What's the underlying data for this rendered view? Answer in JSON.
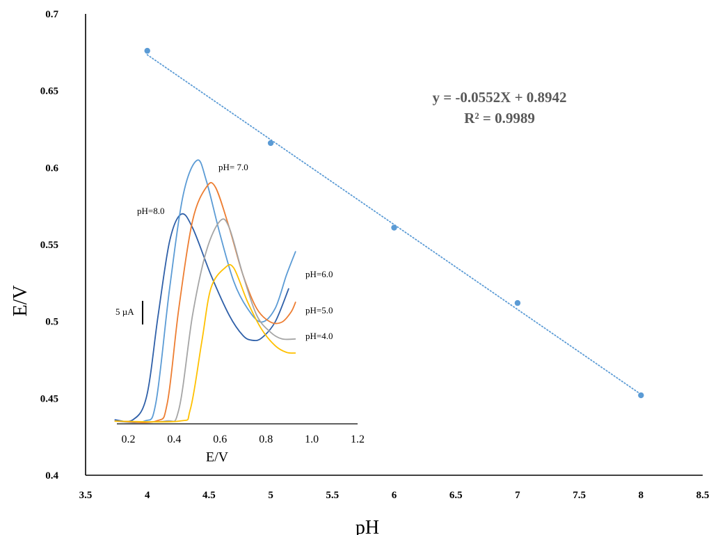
{
  "chart_data": [
    {
      "type": "scatter",
      "xlabel": "pH",
      "ylabel": "E/V",
      "xlim": [
        3.5,
        8.5
      ],
      "ylim": [
        0.4,
        0.7
      ],
      "xticks": [
        "3.5",
        "4",
        "4.5",
        "5",
        "5.5",
        "6",
        "6.5",
        "7",
        "7.5",
        "8",
        "8.5"
      ],
      "yticks": [
        "0.4",
        "0.45",
        "0.5",
        "0.55",
        "0.6",
        "0.65",
        "0.7"
      ],
      "points": [
        {
          "x": 4.0,
          "y": 0.676
        },
        {
          "x": 5.0,
          "y": 0.616
        },
        {
          "x": 6.0,
          "y": 0.561
        },
        {
          "x": 7.0,
          "y": 0.512
        },
        {
          "x": 8.0,
          "y": 0.452
        }
      ],
      "trendline": {
        "slope": -0.0552,
        "intercept": 0.8942,
        "x_range": [
          4.0,
          8.0
        ],
        "style": "dotted"
      },
      "equation_text": "y = -0.0552X + 0.8942",
      "r2_text": "R² = 0.9989",
      "point_color": "#5b9bd5",
      "grid": false
    },
    {
      "type": "line",
      "xlabel": "E/V",
      "xlim": [
        0.15,
        1.2
      ],
      "xticks": [
        "0.2",
        "0.4",
        "0.6",
        "0.8",
        "1.0",
        "1.2"
      ],
      "scale_bar_label": "5 µA",
      "series": [
        {
          "name": "pH=8.0",
          "color": "#2e5fa8",
          "points": [
            [
              0.14,
              0.5
            ],
            [
              0.22,
              0.5
            ],
            [
              0.28,
              4
            ],
            [
              0.33,
              16
            ],
            [
              0.38,
              27
            ],
            [
              0.43,
              31
            ],
            [
              0.48,
              29
            ],
            [
              0.56,
              22
            ],
            [
              0.64,
              16
            ],
            [
              0.7,
              13
            ],
            [
              0.74,
              12.3
            ],
            [
              0.78,
              12.6
            ],
            [
              0.84,
              15
            ],
            [
              0.9,
              20
            ]
          ]
        },
        {
          "name": "pH= 7.0",
          "color": "#5b9bd5",
          "points": [
            [
              0.14,
              0.3
            ],
            [
              0.27,
              0.3
            ],
            [
              0.32,
              3
            ],
            [
              0.38,
              20
            ],
            [
              0.44,
              34
            ],
            [
              0.5,
              39
            ],
            [
              0.54,
              36
            ],
            [
              0.6,
              28
            ],
            [
              0.66,
              21
            ],
            [
              0.72,
              17
            ],
            [
              0.78,
              15
            ],
            [
              0.84,
              17
            ],
            [
              0.89,
              22
            ],
            [
              0.93,
              25.5
            ]
          ]
        },
        {
          "name": "pH=6.0",
          "color": "#ed7d31",
          "points": [
            [
              0.14,
              0.3
            ],
            [
              0.32,
              0.3
            ],
            [
              0.37,
              3
            ],
            [
              0.42,
              17
            ],
            [
              0.48,
              30
            ],
            [
              0.54,
              35
            ],
            [
              0.58,
              35
            ],
            [
              0.64,
              29
            ],
            [
              0.7,
              22
            ],
            [
              0.76,
              17
            ],
            [
              0.82,
              15
            ],
            [
              0.87,
              15
            ],
            [
              0.91,
              16.5
            ],
            [
              0.93,
              18
            ]
          ]
        },
        {
          "name": "pH=5.0",
          "color": "#a5a5a5",
          "points": [
            [
              0.14,
              0.3
            ],
            [
              0.36,
              0.3
            ],
            [
              0.42,
              2
            ],
            [
              0.48,
              16
            ],
            [
              0.54,
              25.5
            ],
            [
              0.6,
              30
            ],
            [
              0.64,
              29
            ],
            [
              0.7,
              22
            ],
            [
              0.76,
              16
            ],
            [
              0.82,
              13.5
            ],
            [
              0.87,
              12.5
            ],
            [
              0.93,
              12.5
            ]
          ]
        },
        {
          "name": "pH=4.0",
          "color": "#ffc000",
          "points": [
            [
              0.14,
              0.3
            ],
            [
              0.42,
              0.3
            ],
            [
              0.47,
              2
            ],
            [
              0.52,
              12
            ],
            [
              0.56,
              20
            ],
            [
              0.62,
              23
            ],
            [
              0.66,
              23
            ],
            [
              0.72,
              18
            ],
            [
              0.78,
              14
            ],
            [
              0.84,
              11.5
            ],
            [
              0.89,
              10.5
            ],
            [
              0.93,
              10.4
            ]
          ]
        }
      ]
    }
  ]
}
